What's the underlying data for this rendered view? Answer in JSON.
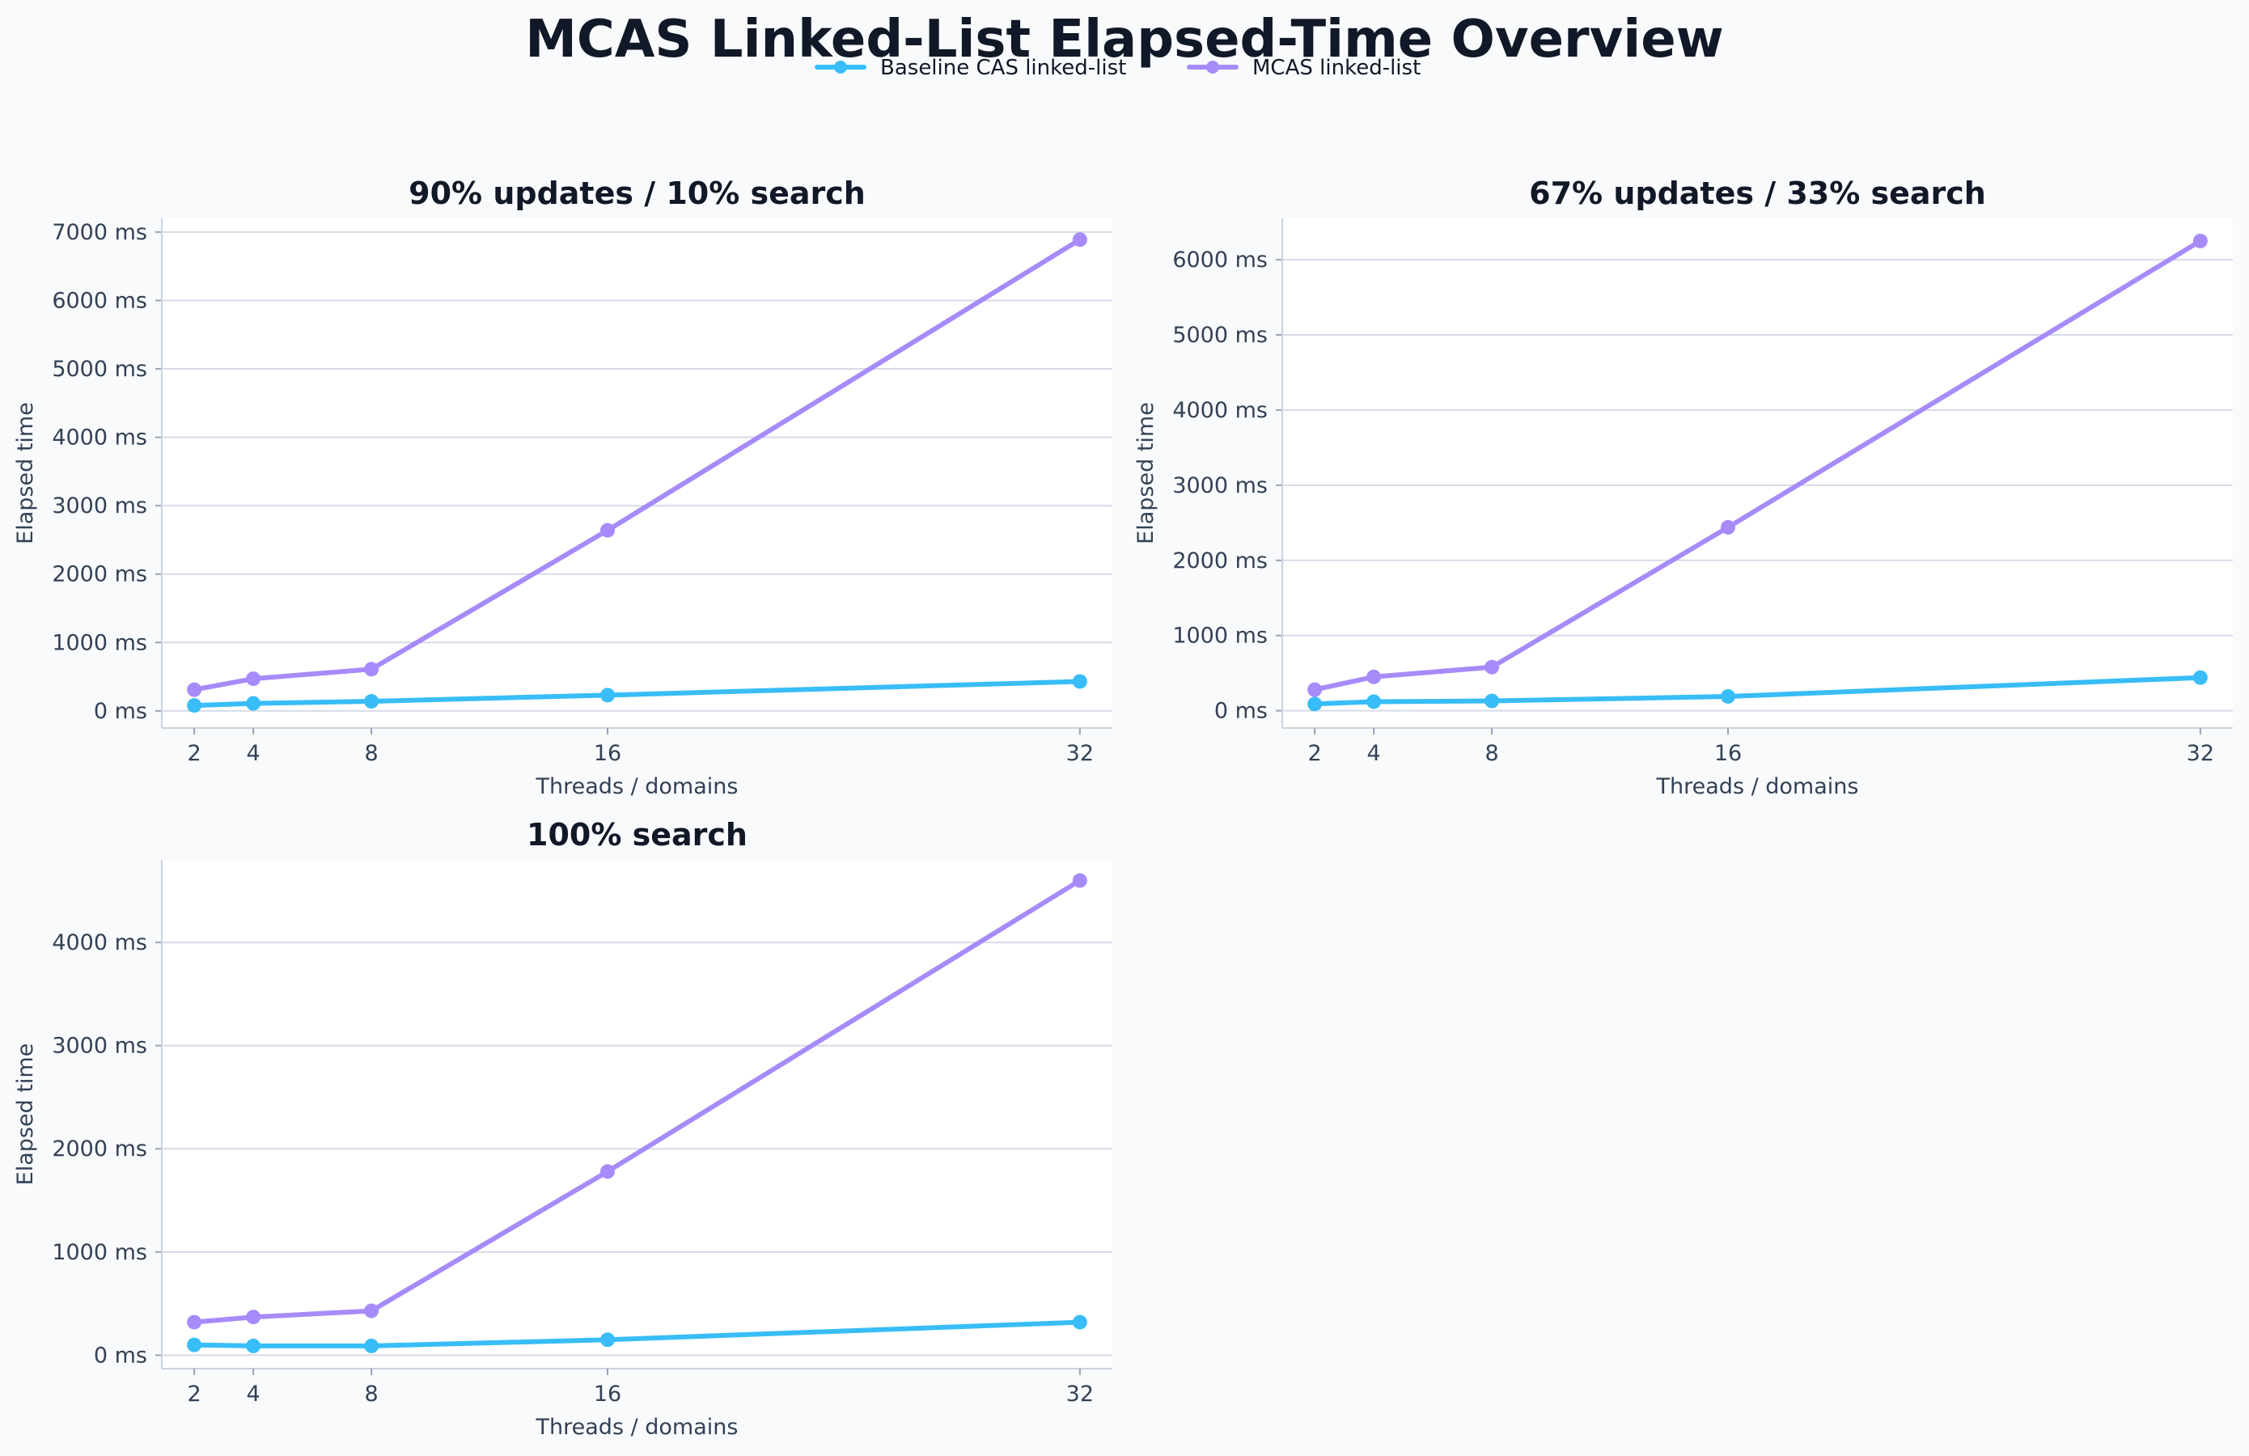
{
  "chart_data": {
    "type": "line",
    "title": "MCAS Linked-List Elapsed-Time Overview",
    "legend": {
      "placement": "top-center",
      "entries": [
        {
          "name": "Baseline CAS linked-list",
          "color": "#38bdf8"
        },
        {
          "name": "MCAS linked-list",
          "color": "#a78bfa"
        }
      ]
    },
    "x": [
      2,
      4,
      8,
      16,
      32
    ],
    "xticks": [
      "2",
      "4",
      "8",
      "16",
      "32"
    ],
    "xlabel": "Threads / domains",
    "ylabel": "Elapsed time",
    "grid": "horizontal",
    "panels": [
      {
        "title": "90% updates / 10% search",
        "ylim": [
          -250,
          7200
        ],
        "yticks": [
          0,
          1000,
          2000,
          3000,
          4000,
          5000,
          6000,
          7000
        ],
        "ytick_labels": [
          "0 ms",
          "1000 ms",
          "2000 ms",
          "3000 ms",
          "4000 ms",
          "5000 ms",
          "6000 ms",
          "7000 ms"
        ],
        "series": [
          {
            "name": "Baseline CAS linked-list",
            "color": "#38bdf8",
            "values": [
              80,
              110,
              140,
              230,
              430
            ]
          },
          {
            "name": "MCAS linked-list",
            "color": "#a78bfa",
            "values": [
              310,
              470,
              610,
              2640,
              6890
            ]
          }
        ]
      },
      {
        "title": "67% updates / 33% search",
        "ylim": [
          -230,
          6550
        ],
        "yticks": [
          0,
          1000,
          2000,
          3000,
          4000,
          5000,
          6000
        ],
        "ytick_labels": [
          "0 ms",
          "1000 ms",
          "2000 ms",
          "3000 ms",
          "4000 ms",
          "5000 ms",
          "6000 ms"
        ],
        "series": [
          {
            "name": "Baseline CAS linked-list",
            "color": "#38bdf8",
            "values": [
              90,
              120,
              130,
              190,
              440
            ]
          },
          {
            "name": "MCAS linked-list",
            "color": "#a78bfa",
            "values": [
              280,
              450,
              580,
              2440,
              6250
            ]
          }
        ]
      },
      {
        "title": "100% search",
        "ylim": [
          -130,
          4800
        ],
        "yticks": [
          0,
          1000,
          2000,
          3000,
          4000
        ],
        "ytick_labels": [
          "0 ms",
          "1000 ms",
          "2000 ms",
          "3000 ms",
          "4000 ms"
        ],
        "series": [
          {
            "name": "Baseline CAS linked-list",
            "color": "#38bdf8",
            "values": [
              100,
              90,
              90,
              150,
              320
            ]
          },
          {
            "name": "MCAS linked-list",
            "color": "#a78bfa",
            "values": [
              320,
              370,
              430,
              1780,
              4600
            ]
          }
        ]
      }
    ]
  }
}
